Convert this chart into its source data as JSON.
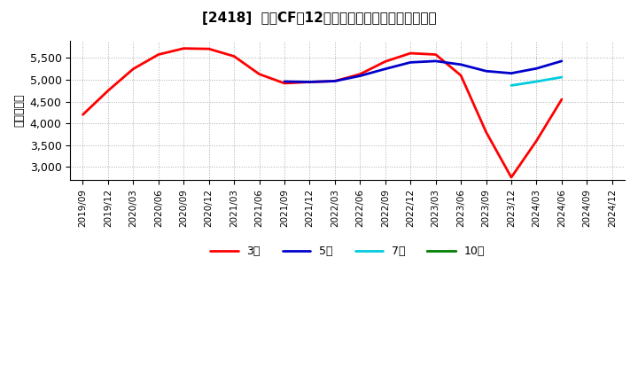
{
  "title": "[2418]  投賄CFの12か月移動合計の標準偏差の推移",
  "ylabel": "（百万円）",
  "ylim": [
    2700,
    5900
  ],
  "yticks": [
    3000,
    3500,
    4000,
    4500,
    5000,
    5500
  ],
  "background_color": "#ffffff",
  "grid_color": "#999999",
  "series": {
    "3年": {
      "color": "#ff0000",
      "dates": [
        "2019/09",
        "2019/12",
        "2020/03",
        "2020/06",
        "2020/09",
        "2020/12",
        "2021/03",
        "2021/06",
        "2021/09",
        "2021/12",
        "2022/03",
        "2022/06",
        "2022/09",
        "2022/12",
        "2023/03",
        "2023/06",
        "2023/09",
        "2023/12",
        "2024/03",
        "2024/06"
      ],
      "values": [
        4200,
        4750,
        5250,
        5580,
        5720,
        5710,
        5540,
        5130,
        4920,
        4950,
        4970,
        5130,
        5420,
        5610,
        5580,
        5100,
        3800,
        2760,
        3600,
        4550
      ]
    },
    "5年": {
      "color": "#0000cc",
      "dates": [
        "2021/09",
        "2021/12",
        "2022/03",
        "2022/06",
        "2022/09",
        "2022/12",
        "2023/03",
        "2023/06",
        "2023/09",
        "2023/12",
        "2024/03",
        "2024/06"
      ],
      "values": [
        4960,
        4950,
        4970,
        5090,
        5250,
        5400,
        5430,
        5350,
        5200,
        5150,
        5260,
        5430
      ]
    },
    "7年": {
      "color": "#00ccdd",
      "dates": [
        "2023/12",
        "2024/03",
        "2024/06"
      ],
      "values": [
        4870,
        4960,
        5060
      ]
    },
    "10年": {
      "color": "#008000",
      "dates": [],
      "values": []
    }
  },
  "x_tick_labels": [
    "2019/09",
    "2019/12",
    "2020/03",
    "2020/06",
    "2020/09",
    "2020/12",
    "2021/03",
    "2021/06",
    "2021/09",
    "2021/12",
    "2022/03",
    "2022/06",
    "2022/09",
    "2022/12",
    "2023/03",
    "2023/06",
    "2023/09",
    "2023/12",
    "2024/03",
    "2024/06",
    "2024/09",
    "2024/12"
  ],
  "legend_order": [
    "3年",
    "5年",
    "7年",
    "10年"
  ]
}
